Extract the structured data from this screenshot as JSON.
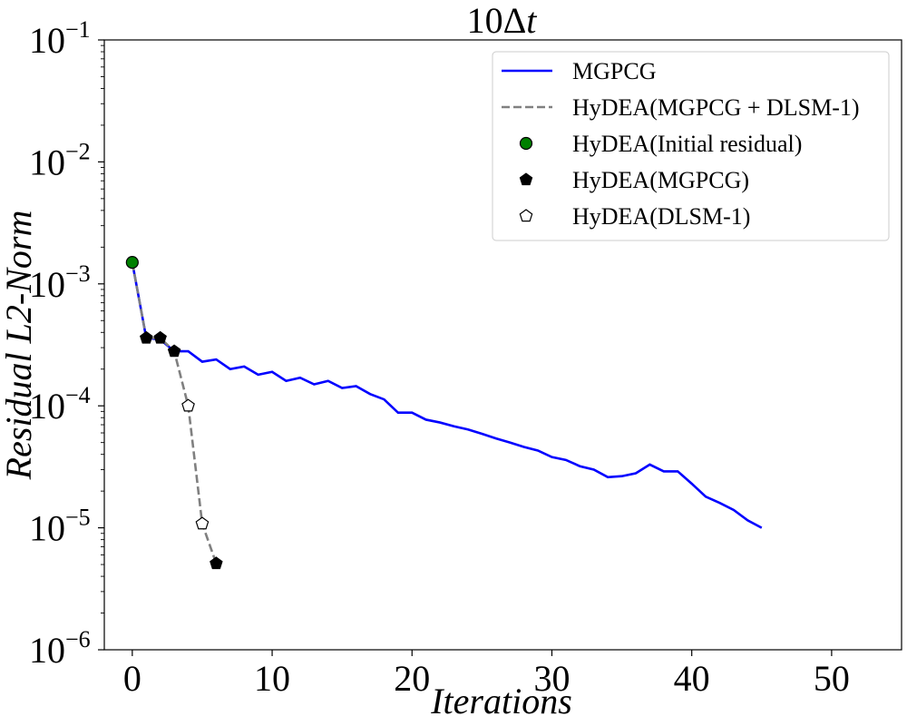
{
  "chart_data": {
    "type": "line",
    "title": "10Δ",
    "title_var": "t",
    "xlabel": "Iterations",
    "ylabel": "Residual L2-Norm",
    "xlim": [
      -2,
      55
    ],
    "ylim_log10": [
      -6,
      -1
    ],
    "yscale": "log",
    "xticks": [
      0,
      10,
      20,
      30,
      40,
      50
    ],
    "xtick_labels": [
      "0",
      "10",
      "20",
      "30",
      "40",
      "50"
    ],
    "yticks_log10": [
      -6,
      -5,
      -4,
      -3,
      -2,
      -1
    ],
    "ytick_base": "10",
    "ytick_exponents": [
      "−6",
      "−5",
      "−4",
      "−3",
      "−2",
      "−1"
    ],
    "grid": false,
    "legend_position": "top-right",
    "series": [
      {
        "name": "MGPCG",
        "style": "solid",
        "color": "#0000ff",
        "x": [
          0,
          1,
          2,
          3,
          4,
          5,
          6,
          7,
          8,
          9,
          10,
          11,
          12,
          13,
          14,
          15,
          16,
          17,
          18,
          19,
          20,
          21,
          22,
          23,
          24,
          25,
          26,
          27,
          28,
          29,
          30,
          31,
          32,
          33,
          34,
          35,
          36,
          37,
          38,
          39,
          40,
          41,
          42,
          43,
          44,
          45
        ],
        "y": [
          0.0015,
          0.00036,
          0.00035,
          0.00028,
          0.00028,
          0.00023,
          0.00024,
          0.0002,
          0.00021,
          0.00018,
          0.00019,
          0.00016,
          0.00017,
          0.00015,
          0.00016,
          0.00014,
          0.000145,
          0.000125,
          0.000113,
          8.8e-05,
          8.8e-05,
          7.7e-05,
          7.3e-05,
          6.8e-05,
          6.4e-05,
          5.9e-05,
          5.4e-05,
          5e-05,
          4.6e-05,
          4.3e-05,
          3.8e-05,
          3.6e-05,
          3.2e-05,
          3e-05,
          2.6e-05,
          2.65e-05,
          2.8e-05,
          3.3e-05,
          2.9e-05,
          2.9e-05,
          2.3e-05,
          1.8e-05,
          1.6e-05,
          1.4e-05,
          1.15e-05,
          1e-05
        ]
      },
      {
        "name": "HyDEA(MGPCG + DLSM-1)",
        "style": "dashed",
        "color": "#808080",
        "x": [
          0,
          1,
          2,
          3,
          4,
          5,
          6
        ],
        "y": [
          0.0015,
          0.00036,
          0.00036,
          0.00028,
          0.0001,
          1.08e-05,
          5.1e-06
        ]
      },
      {
        "name": "HyDEA(Initial residual)",
        "style": "marker-circle",
        "color": "#008000",
        "x": [
          0
        ],
        "y": [
          0.0015
        ]
      },
      {
        "name": "HyDEA(MGPCG)",
        "style": "marker-pentagon-filled",
        "color": "#000000",
        "x": [
          1,
          2,
          3,
          6
        ],
        "y": [
          0.00036,
          0.00036,
          0.00028,
          5.1e-06
        ]
      },
      {
        "name": "HyDEA(DLSM-1)",
        "style": "marker-pentagon-open",
        "color": "#000000",
        "x": [
          4,
          5
        ],
        "y": [
          0.0001,
          1.08e-05
        ]
      }
    ]
  }
}
